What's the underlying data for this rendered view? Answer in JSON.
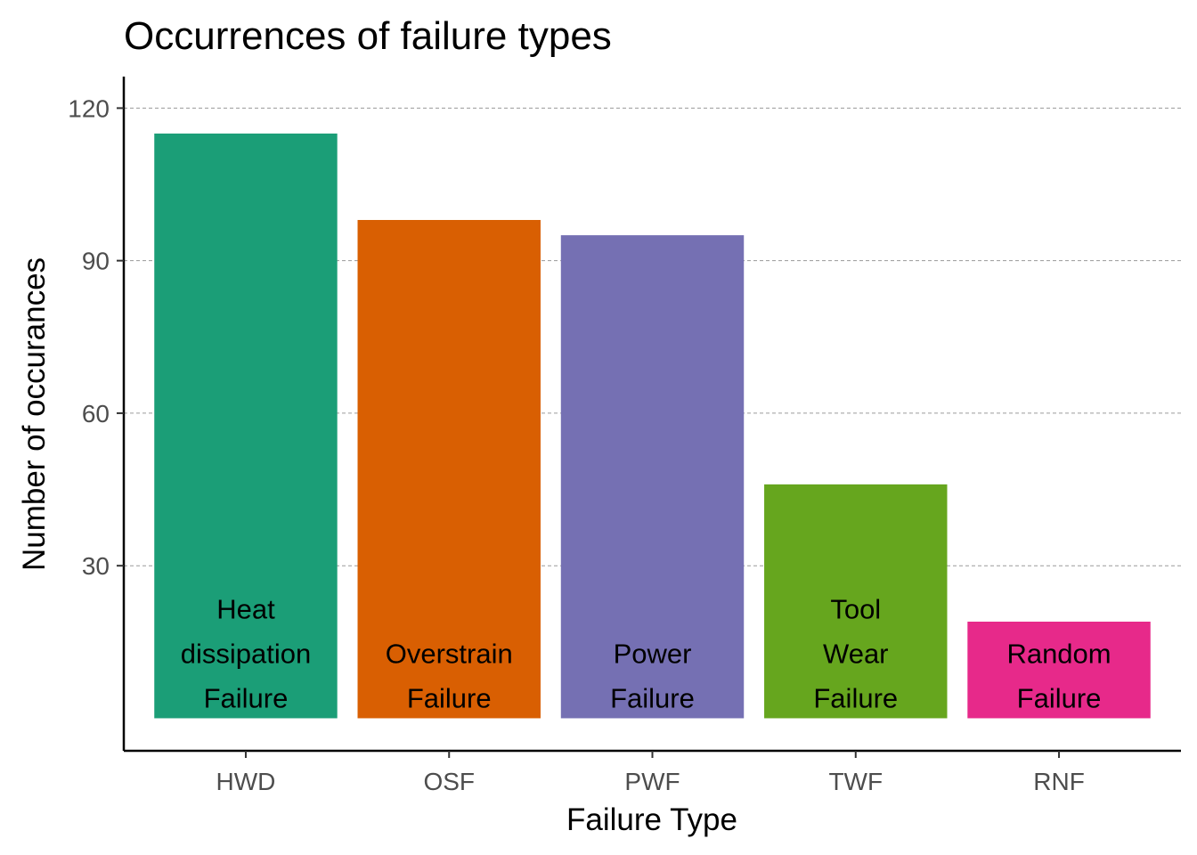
{
  "chart_data": {
    "type": "bar",
    "title": "Occurrences of failure types",
    "xlabel": "Failure Type",
    "ylabel": "Number of occurances",
    "categories": [
      "HWD",
      "OSF",
      "PWF",
      "TWF",
      "RNF"
    ],
    "values": [
      115,
      98,
      95,
      46,
      19
    ],
    "bar_labels": [
      [
        "Heat",
        "dissipation",
        "Failure"
      ],
      [
        "Overstrain",
        "Failure"
      ],
      [
        "Power",
        "Failure"
      ],
      [
        "Tool",
        "Wear",
        "Failure"
      ],
      [
        "Random",
        "Failure"
      ]
    ],
    "colors": [
      "#1b9e77",
      "#d95f02",
      "#7570b3",
      "#66a61e",
      "#e7298a"
    ],
    "yticks": [
      30,
      60,
      90,
      120
    ],
    "ylim": [
      -6.4,
      126.2
    ],
    "grid": "horizontal dashed",
    "legend": "none"
  }
}
